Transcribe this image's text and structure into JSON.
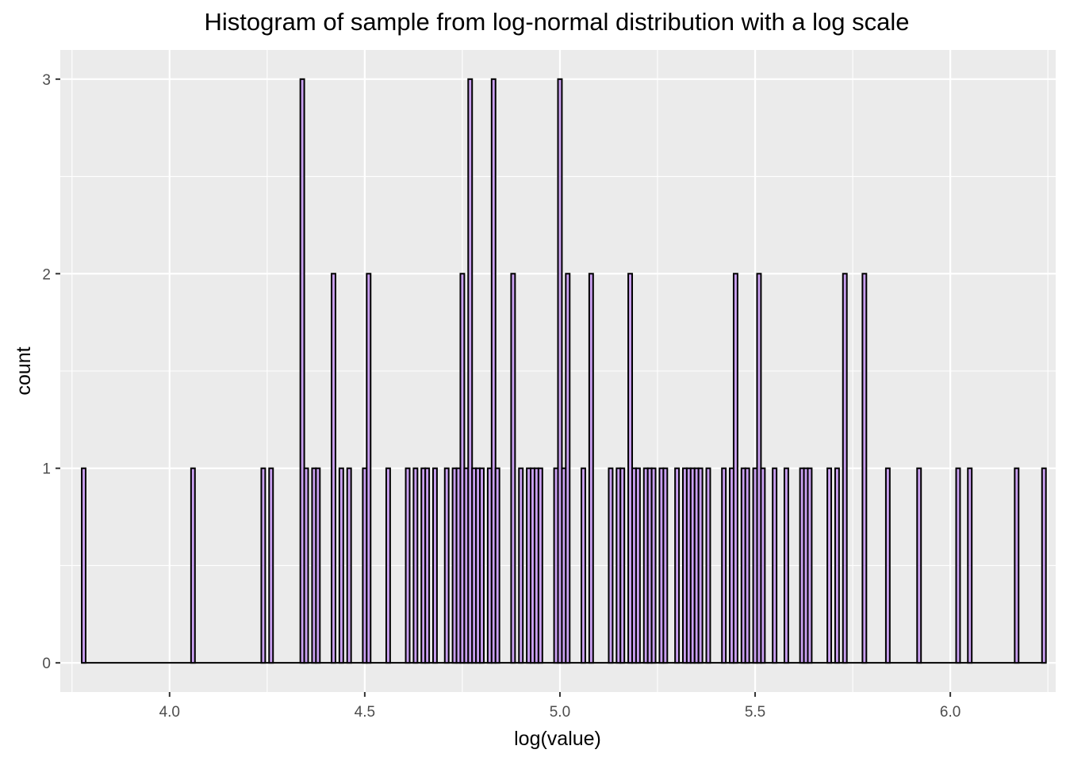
{
  "chart_data": {
    "type": "bar",
    "title": "Histogram of sample from log-normal distribution with a log scale",
    "xlabel": "log(value)",
    "ylabel": "count",
    "xlim": [
      3.72,
      6.27
    ],
    "ylim": [
      -0.15,
      3.15
    ],
    "x_ticks": [
      4.0,
      4.5,
      5.0,
      5.5,
      6.0
    ],
    "x_tick_labels": [
      "4.0",
      "4.5",
      "5.0",
      "5.5",
      "6.0"
    ],
    "y_ticks": [
      0,
      1,
      2,
      3
    ],
    "y_tick_labels": [
      "0",
      "1",
      "2",
      "3"
    ],
    "grid": true,
    "bin_range": [
      3.775,
      6.245
    ],
    "bin_width": 0.01,
    "fill_color": "#c9a0f0",
    "outline_color": "#000000",
    "panel_color": "#ebebeb",
    "bins": [
      {
        "x": 3.78,
        "count": 1
      },
      {
        "x": 4.06,
        "count": 1
      },
      {
        "x": 4.24,
        "count": 1
      },
      {
        "x": 4.26,
        "count": 1
      },
      {
        "x": 4.34,
        "count": 3
      },
      {
        "x": 4.35,
        "count": 1
      },
      {
        "x": 4.37,
        "count": 1
      },
      {
        "x": 4.38,
        "count": 1
      },
      {
        "x": 4.42,
        "count": 2
      },
      {
        "x": 4.44,
        "count": 1
      },
      {
        "x": 4.46,
        "count": 1
      },
      {
        "x": 4.5,
        "count": 1
      },
      {
        "x": 4.51,
        "count": 2
      },
      {
        "x": 4.56,
        "count": 1
      },
      {
        "x": 4.61,
        "count": 1
      },
      {
        "x": 4.63,
        "count": 1
      },
      {
        "x": 4.65,
        "count": 1
      },
      {
        "x": 4.66,
        "count": 1
      },
      {
        "x": 4.68,
        "count": 1
      },
      {
        "x": 4.71,
        "count": 1
      },
      {
        "x": 4.73,
        "count": 1
      },
      {
        "x": 4.74,
        "count": 1
      },
      {
        "x": 4.75,
        "count": 2
      },
      {
        "x": 4.76,
        "count": 1
      },
      {
        "x": 4.77,
        "count": 3
      },
      {
        "x": 4.78,
        "count": 1
      },
      {
        "x": 4.79,
        "count": 1
      },
      {
        "x": 4.8,
        "count": 1
      },
      {
        "x": 4.82,
        "count": 1
      },
      {
        "x": 4.83,
        "count": 3
      },
      {
        "x": 4.84,
        "count": 1
      },
      {
        "x": 4.88,
        "count": 2
      },
      {
        "x": 4.9,
        "count": 1
      },
      {
        "x": 4.92,
        "count": 1
      },
      {
        "x": 4.93,
        "count": 1
      },
      {
        "x": 4.94,
        "count": 1
      },
      {
        "x": 4.95,
        "count": 1
      },
      {
        "x": 4.99,
        "count": 1
      },
      {
        "x": 5.0,
        "count": 3
      },
      {
        "x": 5.01,
        "count": 1
      },
      {
        "x": 5.02,
        "count": 2
      },
      {
        "x": 5.06,
        "count": 1
      },
      {
        "x": 5.08,
        "count": 2
      },
      {
        "x": 5.13,
        "count": 1
      },
      {
        "x": 5.15,
        "count": 1
      },
      {
        "x": 5.16,
        "count": 1
      },
      {
        "x": 5.18,
        "count": 2
      },
      {
        "x": 5.19,
        "count": 1
      },
      {
        "x": 5.2,
        "count": 1
      },
      {
        "x": 5.22,
        "count": 1
      },
      {
        "x": 5.23,
        "count": 1
      },
      {
        "x": 5.24,
        "count": 1
      },
      {
        "x": 5.26,
        "count": 1
      },
      {
        "x": 5.27,
        "count": 1
      },
      {
        "x": 5.3,
        "count": 1
      },
      {
        "x": 5.32,
        "count": 1
      },
      {
        "x": 5.33,
        "count": 1
      },
      {
        "x": 5.34,
        "count": 1
      },
      {
        "x": 5.35,
        "count": 1
      },
      {
        "x": 5.36,
        "count": 1
      },
      {
        "x": 5.38,
        "count": 1
      },
      {
        "x": 5.42,
        "count": 1
      },
      {
        "x": 5.44,
        "count": 1
      },
      {
        "x": 5.45,
        "count": 2
      },
      {
        "x": 5.47,
        "count": 1
      },
      {
        "x": 5.48,
        "count": 1
      },
      {
        "x": 5.5,
        "count": 1
      },
      {
        "x": 5.51,
        "count": 2
      },
      {
        "x": 5.52,
        "count": 1
      },
      {
        "x": 5.55,
        "count": 1
      },
      {
        "x": 5.58,
        "count": 1
      },
      {
        "x": 5.62,
        "count": 1
      },
      {
        "x": 5.63,
        "count": 1
      },
      {
        "x": 5.64,
        "count": 1
      },
      {
        "x": 5.69,
        "count": 1
      },
      {
        "x": 5.71,
        "count": 1
      },
      {
        "x": 5.73,
        "count": 2
      },
      {
        "x": 5.78,
        "count": 2
      },
      {
        "x": 5.84,
        "count": 1
      },
      {
        "x": 5.92,
        "count": 1
      },
      {
        "x": 6.02,
        "count": 1
      },
      {
        "x": 6.05,
        "count": 1
      },
      {
        "x": 6.17,
        "count": 1
      },
      {
        "x": 6.24,
        "count": 1
      }
    ]
  }
}
